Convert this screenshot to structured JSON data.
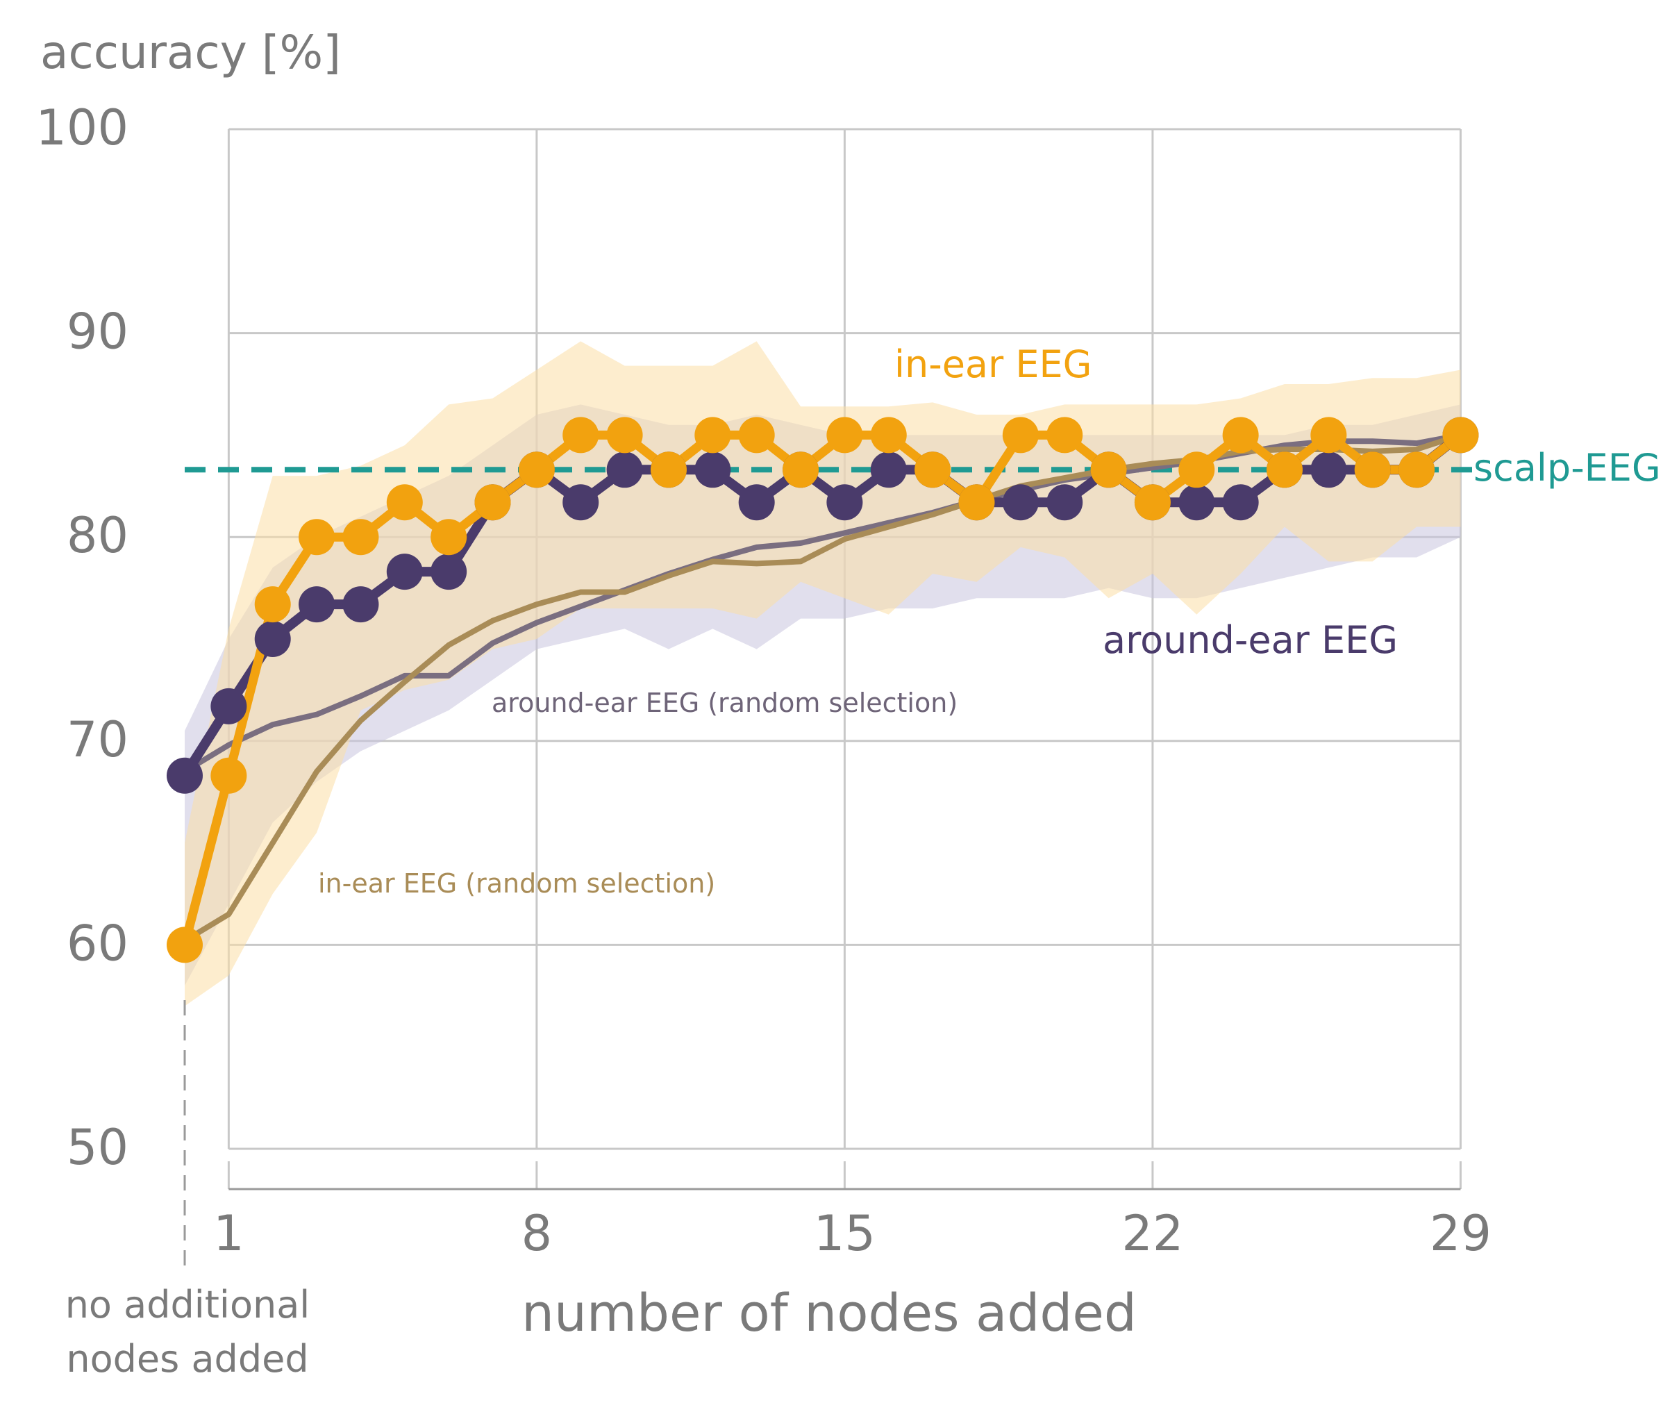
{
  "chart_data": {
    "type": "line",
    "ylabel": "accuracy [%]",
    "xlabel": "number of nodes added",
    "x_baseline_label": [
      "no additional",
      "nodes added"
    ],
    "ylim": [
      50,
      100
    ],
    "xlim": [
      0,
      29
    ],
    "yticks": [
      50,
      60,
      70,
      80,
      90,
      100
    ],
    "xticks": [
      1,
      8,
      15,
      22,
      29
    ],
    "grid": true,
    "colors": {
      "in_ear": "#F2A20F",
      "around_ear": "#4A3B6B",
      "in_ear_random": "#A98C57",
      "around_ear_random": "#7A6E80",
      "in_ear_band": "#FBDFA6",
      "around_ear_band": "#C8C5DE",
      "scalp": "#1F9A93",
      "grid": "#C8C8C8",
      "axis_text": "#7A7A7A"
    },
    "x": [
      0,
      1,
      2,
      3,
      4,
      5,
      6,
      7,
      8,
      9,
      10,
      11,
      12,
      13,
      14,
      15,
      16,
      17,
      18,
      19,
      20,
      21,
      22,
      23,
      24,
      25,
      26,
      27,
      28,
      29
    ],
    "series": [
      {
        "key": "around_ear",
        "name": "around-ear EEG",
        "style": "line-markers",
        "values": [
          68.3,
          71.7,
          75.0,
          76.7,
          76.7,
          78.3,
          78.3,
          81.7,
          83.3,
          81.7,
          83.3,
          83.3,
          83.3,
          81.7,
          83.3,
          81.7,
          83.3,
          83.3,
          81.7,
          81.7,
          81.7,
          83.3,
          81.7,
          81.7,
          81.7,
          83.3,
          83.3,
          83.3,
          83.3,
          85.0
        ]
      },
      {
        "key": "in_ear",
        "name": "in-ear EEG",
        "style": "line-markers",
        "values": [
          60.0,
          68.3,
          76.7,
          80.0,
          80.0,
          81.7,
          80.0,
          81.7,
          83.3,
          85.0,
          85.0,
          83.3,
          85.0,
          85.0,
          83.3,
          85.0,
          85.0,
          83.3,
          81.7,
          85.0,
          85.0,
          83.3,
          81.7,
          83.3,
          85.0,
          83.3,
          85.0,
          83.3,
          83.3,
          85.0
        ]
      },
      {
        "key": "around_ear_random",
        "name": "around-ear EEG (random selection)",
        "style": "line",
        "values": [
          68.5,
          69.8,
          70.8,
          71.3,
          72.2,
          73.2,
          73.2,
          74.8,
          75.8,
          76.6,
          77.4,
          78.2,
          78.9,
          79.5,
          79.7,
          80.2,
          80.7,
          81.2,
          81.8,
          82.3,
          82.8,
          83.1,
          83.4,
          83.7,
          84.1,
          84.5,
          84.7,
          84.7,
          84.6,
          85.0
        ]
      },
      {
        "key": "in_ear_random",
        "name": "in-ear EEG (random selection)",
        "style": "line",
        "values": [
          60.2,
          61.5,
          65.0,
          68.5,
          71.0,
          72.9,
          74.7,
          75.9,
          76.7,
          77.3,
          77.3,
          78.1,
          78.8,
          78.7,
          78.8,
          79.9,
          80.5,
          81.1,
          81.8,
          82.5,
          82.9,
          83.3,
          83.6,
          83.8,
          84.2,
          84.3,
          84.3,
          84.2,
          84.3,
          85.0
        ]
      }
    ],
    "bands": [
      {
        "key": "around_ear_band",
        "upper": [
          70.5,
          75.0,
          78.5,
          80.0,
          81.0,
          82.0,
          83.0,
          84.5,
          86.0,
          86.5,
          86.0,
          85.5,
          85.5,
          86.0,
          85.5,
          85.0,
          85.0,
          85.0,
          85.0,
          85.0,
          85.0,
          85.0,
          85.0,
          85.0,
          85.0,
          85.0,
          85.5,
          85.5,
          86.0,
          86.5
        ],
        "lower": [
          58.0,
          62.0,
          66.0,
          68.0,
          69.5,
          70.5,
          71.5,
          73.0,
          74.5,
          75.0,
          75.5,
          74.5,
          75.5,
          74.5,
          76.0,
          76.0,
          76.5,
          76.5,
          77.0,
          77.0,
          77.0,
          77.5,
          77.0,
          77.0,
          77.5,
          78.0,
          78.5,
          79.0,
          79.0,
          80.0
        ]
      },
      {
        "key": "in_ear_band",
        "upper": [
          65.0,
          75.5,
          83.0,
          83.0,
          83.5,
          84.5,
          86.5,
          86.8,
          88.2,
          89.6,
          88.4,
          88.4,
          88.4,
          89.6,
          86.4,
          86.4,
          86.4,
          86.6,
          86.0,
          86.0,
          86.5,
          86.5,
          86.5,
          86.5,
          86.8,
          87.5,
          87.5,
          87.8,
          87.8,
          88.2
        ]
      },
      {
        "key": "in_ear_band_lower",
        "lower": [
          57.0,
          58.5,
          62.5,
          65.5,
          71.5,
          72.5,
          73.0,
          74.5,
          75.0,
          76.5,
          76.5,
          76.5,
          76.5,
          76.0,
          77.8,
          77.0,
          76.2,
          78.2,
          77.8,
          79.5,
          79.0,
          77.0,
          78.2,
          76.2,
          78.2,
          80.5,
          78.8,
          78.8,
          80.5,
          80.5
        ]
      }
    ],
    "reference_line": {
      "key": "scalp",
      "name": "scalp-EEG",
      "value": 83.3,
      "style": "dashed"
    },
    "annotations": {
      "in_ear": "in-ear EEG",
      "around_ear": "around-ear EEG",
      "around_ear_random": "around-ear EEG (random selection)",
      "in_ear_random": "in-ear EEG (random selection)",
      "scalp": "scalp-EEG"
    }
  }
}
